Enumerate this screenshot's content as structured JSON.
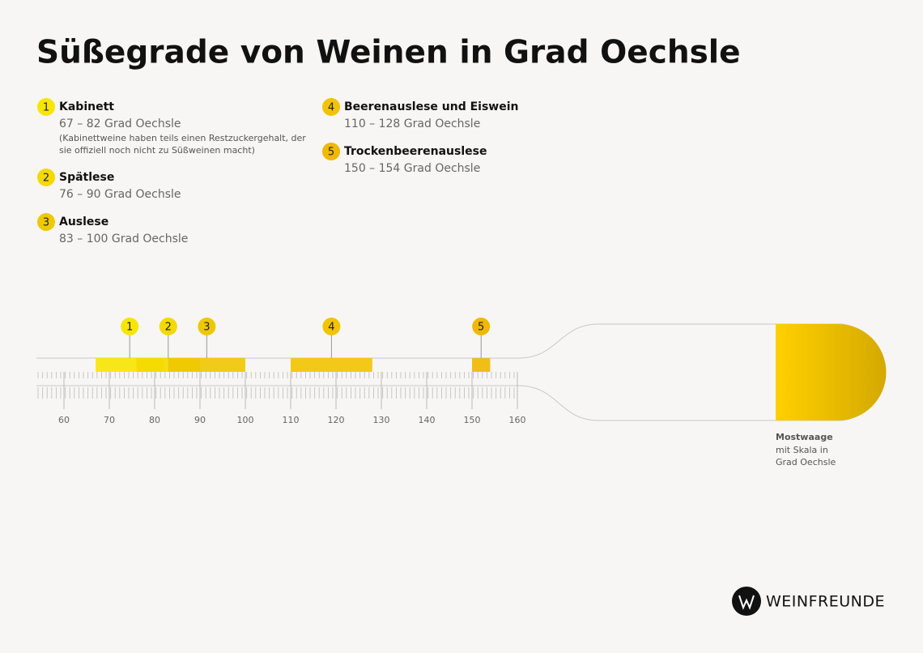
{
  "title": "Süßegrade von Weinen in Grad Oechsle",
  "chart_data": {
    "type": "range",
    "xlim": [
      54,
      160
    ],
    "xticks": [
      60,
      70,
      80,
      90,
      100,
      110,
      120,
      130,
      140,
      150,
      160
    ],
    "items": [
      {
        "marker": "1",
        "name": "Kabinett",
        "range_label": "67 – 82 Grad Oechsle",
        "note": [
          "(Kabinettweine haben teils einen Restzuckergehalt, der",
          "sie offiziell noch nicht zu Süßweinen macht)"
        ],
        "low": 67,
        "high": 82,
        "color": "#f7e600"
      },
      {
        "marker": "2",
        "name": "Spätlese",
        "range_label": "76 – 90 Grad Oechsle",
        "low": 76,
        "high": 90,
        "color": "#f4d900"
      },
      {
        "marker": "3",
        "name": "Auslese",
        "range_label": "83 – 100 Grad Oechsle",
        "low": 83,
        "high": 100,
        "color": "#eec800"
      },
      {
        "marker": "4",
        "name": "Beerenauslese und Eiswein",
        "range_label": "110 – 128 Grad Oechsle",
        "low": 110,
        "high": 128,
        "color": "#f2c400"
      },
      {
        "marker": "5",
        "name": "Trockenbeerenauslese",
        "range_label": "150 – 154 Grad Oechsle",
        "low": 150,
        "high": 154,
        "color": "#f0b800"
      }
    ]
  },
  "device": {
    "title": "Mostwaage",
    "lines": [
      "mit Skala in",
      "Grad Oechsle"
    ]
  },
  "brand": "WEINFREUNDE"
}
